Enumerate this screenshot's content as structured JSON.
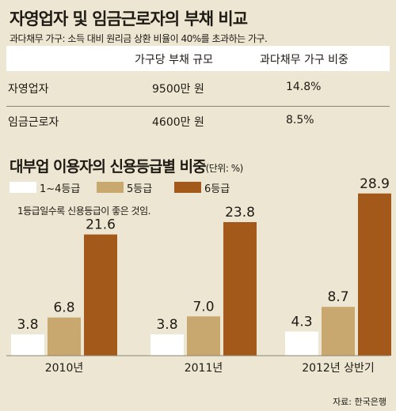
{
  "table": {
    "title": "자영업자 및 임금근로자의 부채 비교",
    "subtitle": "과다채무 가구: 소득 대비 원리금 상환 비율이 40%를 초과하는 가구.",
    "header": [
      "",
      "가구당 부채 규모",
      "과다채무 가구 비중"
    ],
    "rows": [
      {
        "label": "자영업자",
        "debt": "9500만 원",
        "ratio": "14.8%"
      },
      {
        "label": "임금근로자",
        "debt": "4600만 원",
        "ratio": "8.5%"
      }
    ]
  },
  "chart_data": {
    "type": "bar",
    "title": "대부업 이용자의 신용등급별 비중",
    "unit_note": "(단위: %)",
    "note": "1등급일수록 신용등급이 좋은 것임.",
    "categories": [
      "2010년",
      "2011년",
      "2012년 상반기"
    ],
    "series": [
      {
        "name": "1~4등급",
        "values": [
          3.8,
          3.8,
          4.3
        ],
        "color": "#ffffff"
      },
      {
        "name": "5등급",
        "values": [
          6.8,
          7.0,
          8.7
        ],
        "color": "#c9a86f"
      },
      {
        "name": "6등급",
        "values": [
          21.6,
          23.8,
          28.9
        ],
        "color": "#a2591a"
      }
    ],
    "legend_position": "top-left",
    "grid": false,
    "source": "자료: 한국은행"
  }
}
